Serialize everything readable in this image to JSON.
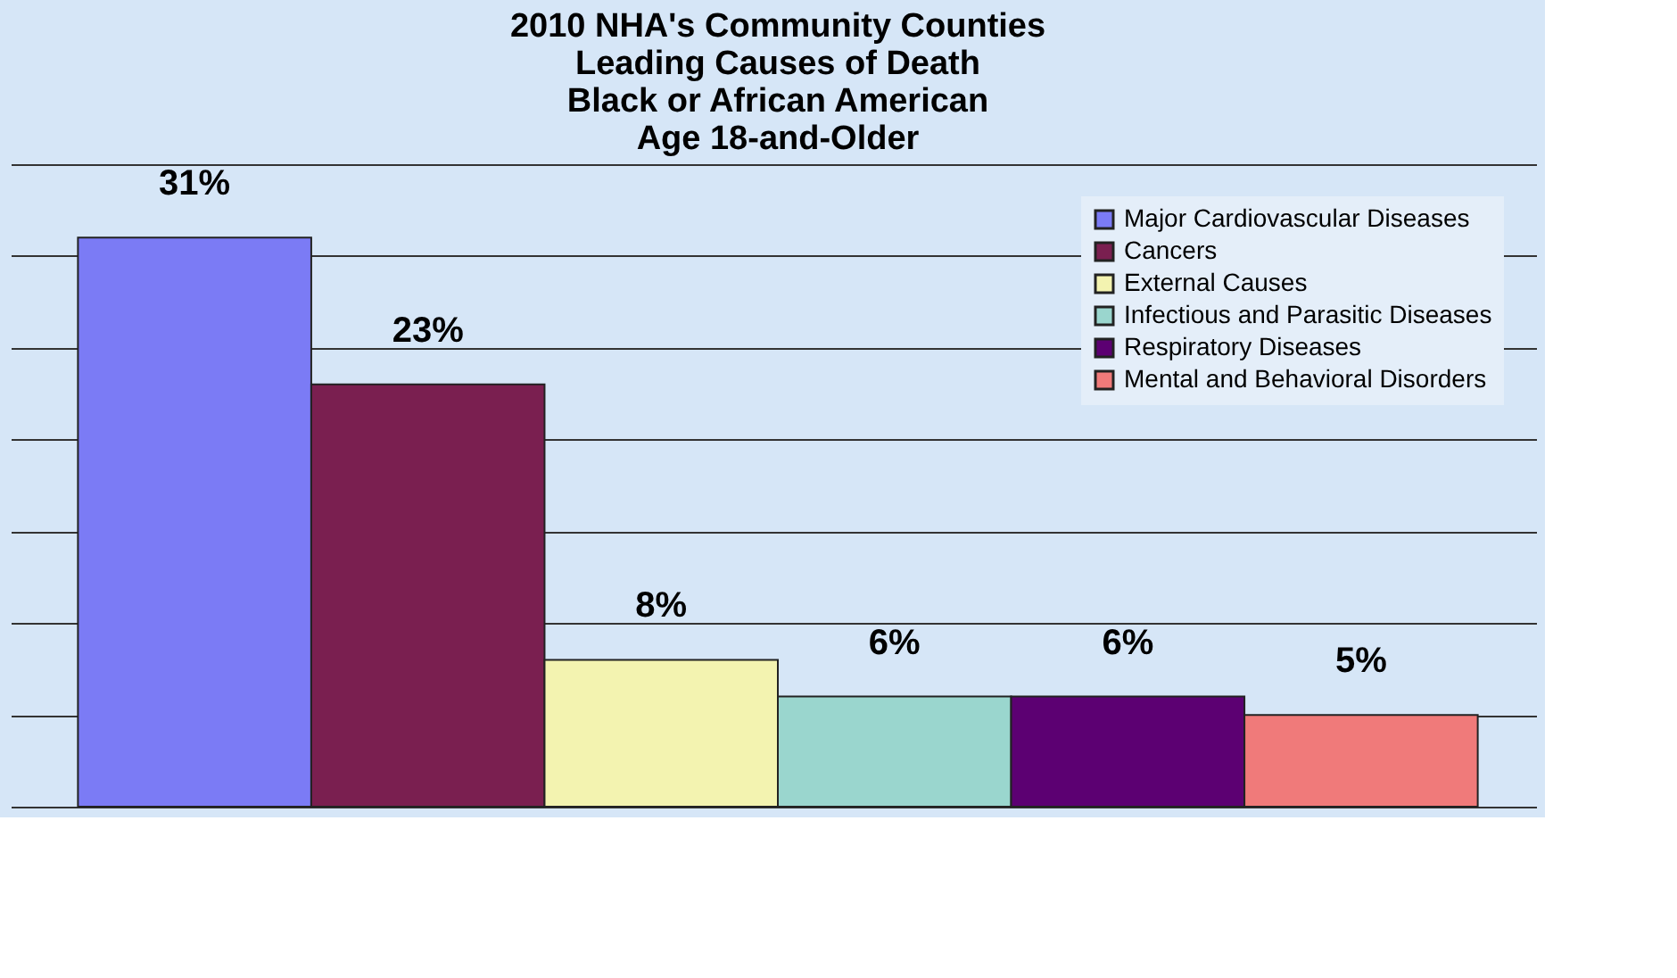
{
  "chart_data": {
    "type": "bar",
    "title": "2010 NHA's Community Counties\nLeading Causes of Death\nBlack or African American\nAge 18-and-Older",
    "categories": [
      null
    ],
    "series": [
      {
        "name": "Major Cardiovascular Diseases",
        "color": "#7b7bf5",
        "values": [
          31
        ],
        "value_labels": [
          "31%"
        ]
      },
      {
        "name": "Cancers",
        "color": "#7a1f50",
        "values": [
          23
        ],
        "value_labels": [
          "23%"
        ]
      },
      {
        "name": "External Causes",
        "color": "#f3f3b0",
        "values": [
          8
        ],
        "value_labels": [
          "8%"
        ]
      },
      {
        "name": "Infectious and Parasitic Diseases",
        "color": "#9ad6ce",
        "values": [
          6
        ],
        "value_labels": [
          "6%"
        ]
      },
      {
        "name": "Respiratory Diseases",
        "color": "#5c0072",
        "values": [
          6
        ],
        "value_labels": [
          "6%"
        ]
      },
      {
        "name": "Mental and Behavioral Disorders",
        "color": "#f07a7a",
        "values": [
          5
        ],
        "value_labels": [
          "5%"
        ]
      }
    ],
    "tick_labels": false,
    "grid": "y",
    "legend": "top right"
  }
}
